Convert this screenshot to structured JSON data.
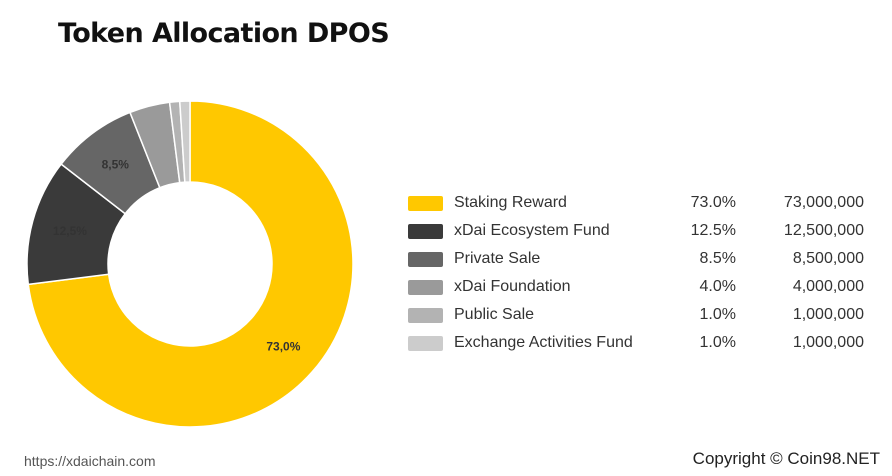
{
  "title": "Token Allocation DPOS",
  "chart_data": {
    "type": "pie",
    "title": "Token Allocation DPOS",
    "categories": [
      "Staking Reward",
      "xDai Ecosystem Fund",
      "Private Sale",
      "xDai Foundation",
      "Public Sale",
      "Exchange Activities Fund"
    ],
    "values": [
      73.0,
      12.5,
      8.5,
      4.0,
      1.0,
      1.0
    ],
    "amounts": [
      "73,000,000",
      "12,500,000",
      "8,500,000",
      "4,000,000",
      "1,000,000",
      "1,000,000"
    ],
    "legend_percentages": [
      "73.0%",
      "12.5%",
      "8.5%",
      "4.0%",
      "1.0%",
      "1.0%"
    ],
    "data_labels": [
      "73,0%",
      "12,5%",
      "8,5%",
      "",
      "",
      ""
    ],
    "colors": [
      "#FFC800",
      "#3A3A3A",
      "#666666",
      "#9A9A9A",
      "#B3B3B3",
      "#CCCCCC"
    ],
    "legend_position": "right"
  },
  "footer": {
    "source": "https://xdaichain.com",
    "copyright": "Copyright © Coin98.NET"
  }
}
